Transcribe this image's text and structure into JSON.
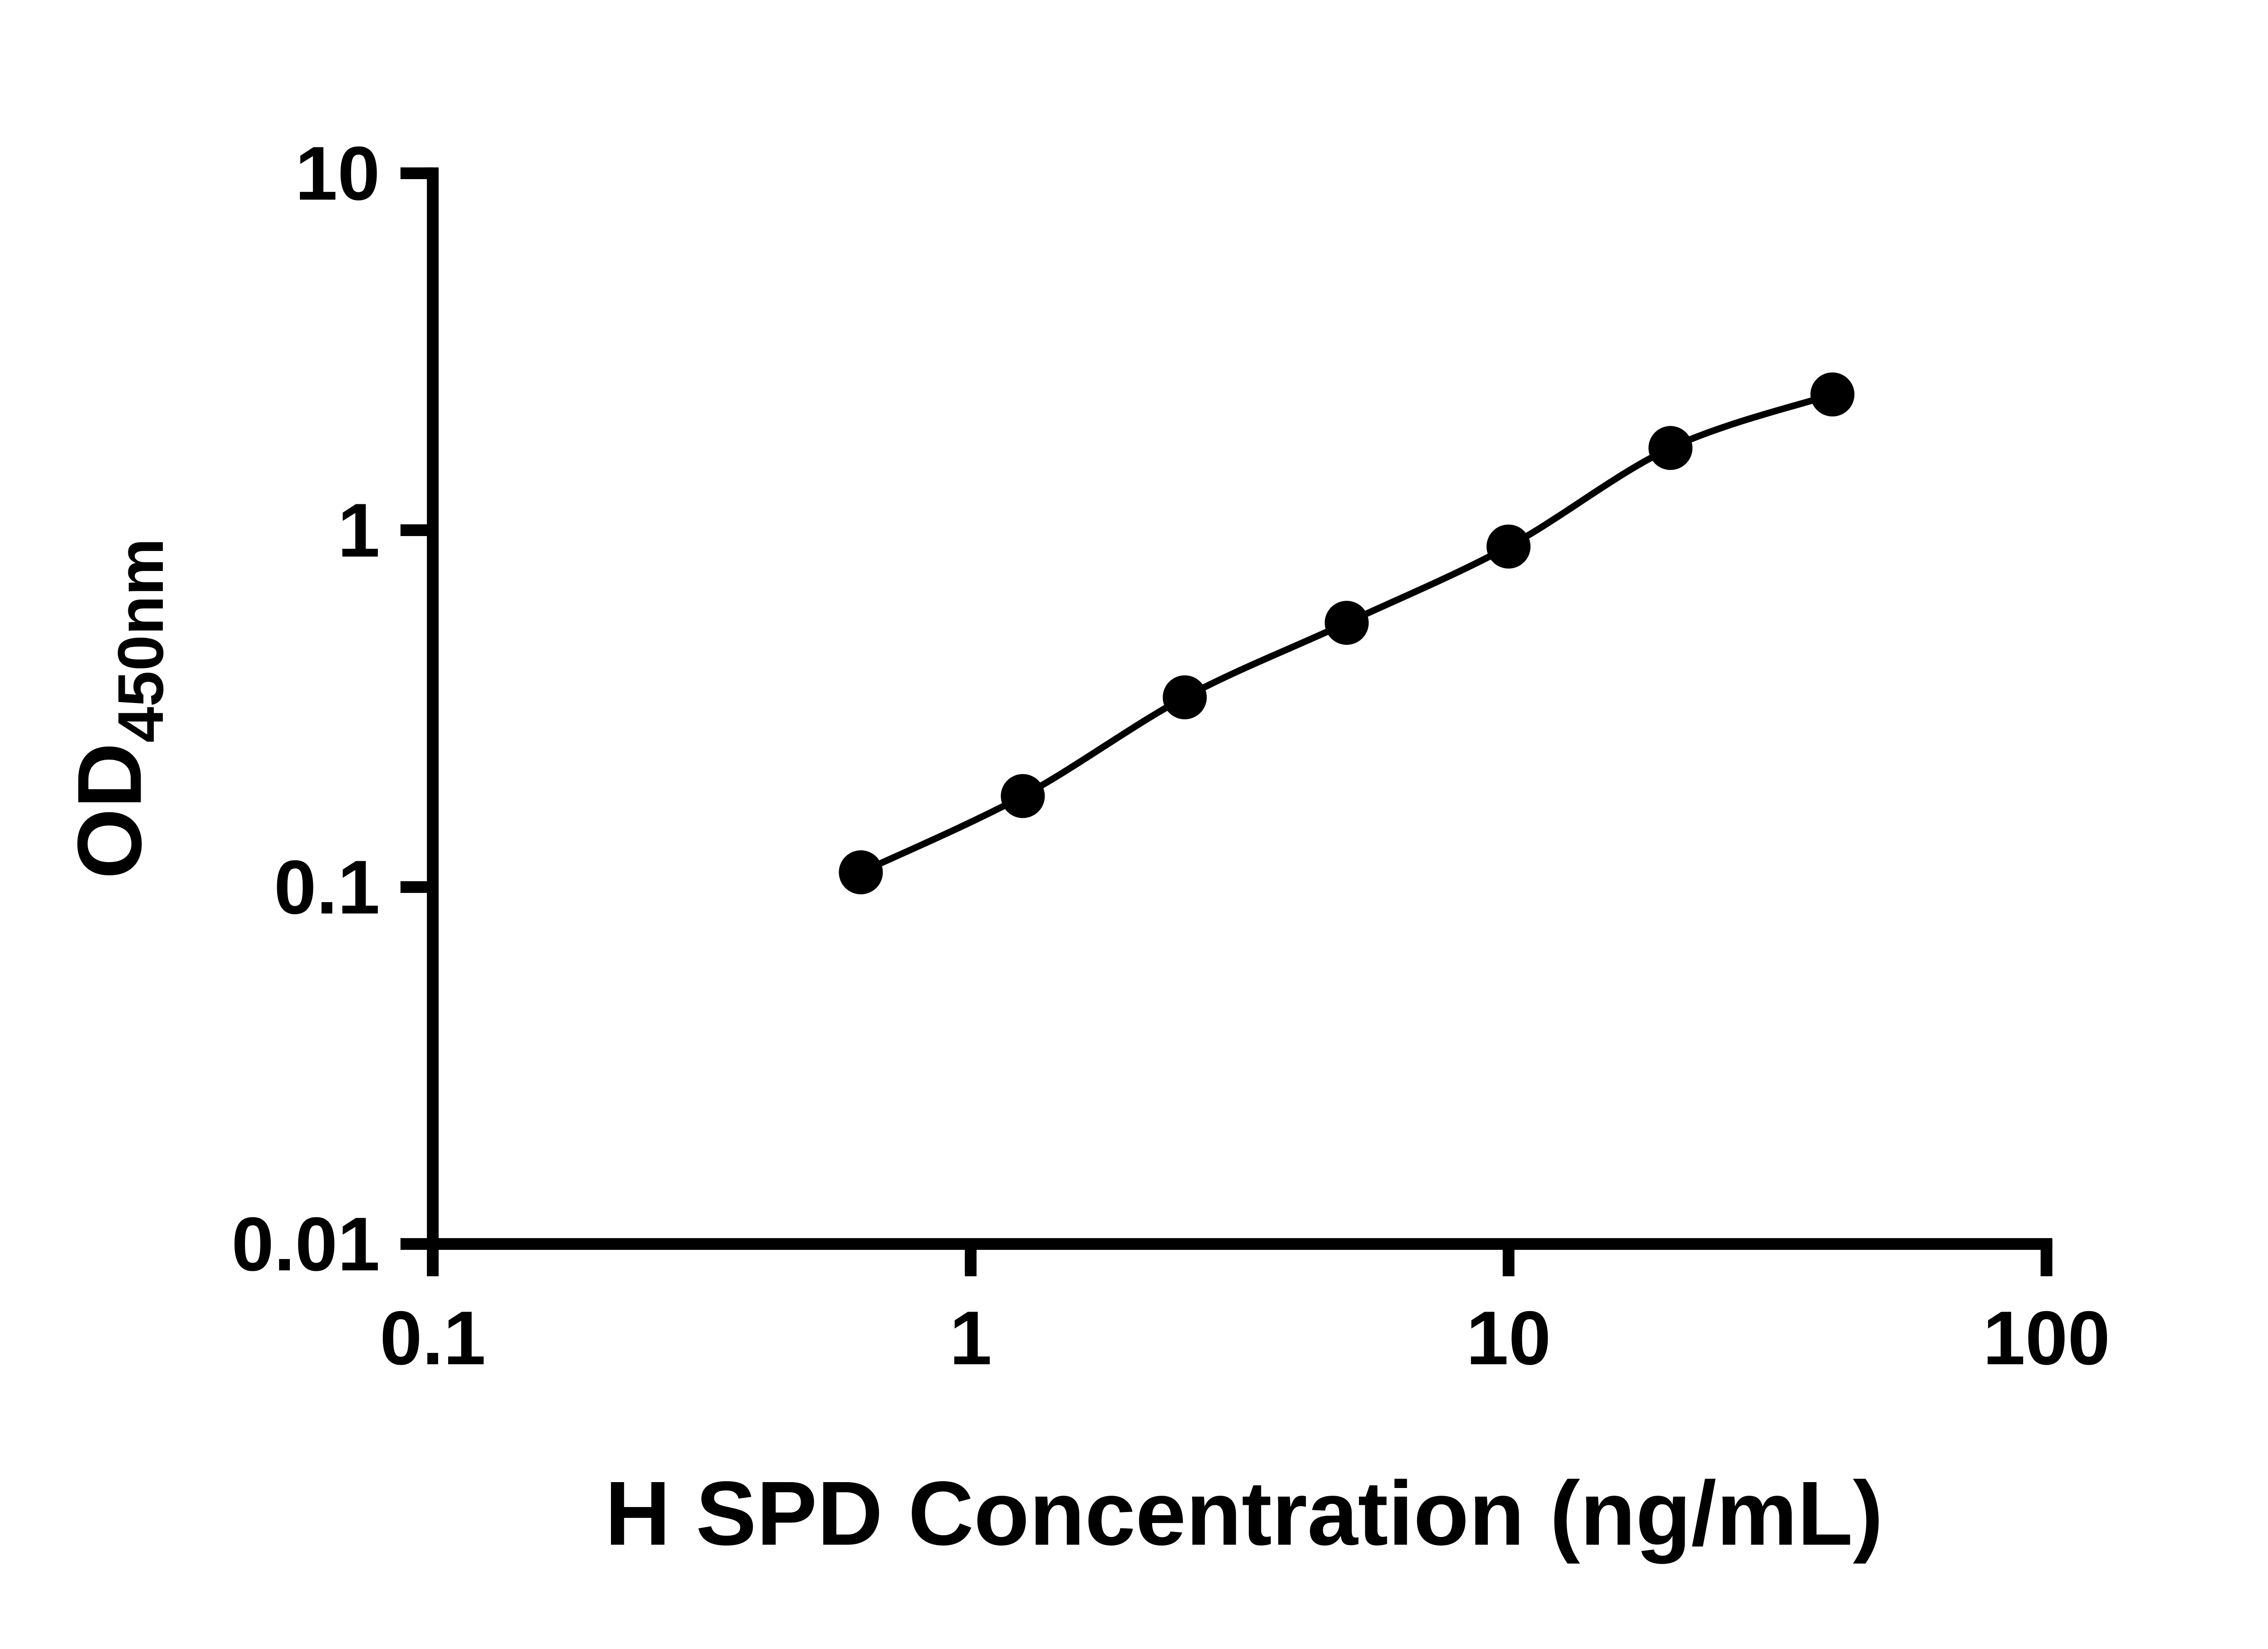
{
  "chart_data": {
    "type": "scatter",
    "title": "",
    "xlabel": "H SPD Concentration (ng/mL)",
    "ylabel_main": "OD",
    "ylabel_sub": "450nm",
    "x_scale": "log",
    "y_scale": "log",
    "xlim": [
      0.1,
      100
    ],
    "ylim": [
      0.01,
      10
    ],
    "grid": false,
    "legend": "none",
    "marker_color": "#000000",
    "line_color": "#000000",
    "x_ticks": [
      {
        "value": 0.1,
        "label": "0.1"
      },
      {
        "value": 1,
        "label": "1"
      },
      {
        "value": 10,
        "label": "10"
      },
      {
        "value": 100,
        "label": "100"
      }
    ],
    "y_ticks": [
      {
        "value": 0.01,
        "label": "0.01"
      },
      {
        "value": 0.1,
        "label": "0.1"
      },
      {
        "value": 1,
        "label": "1"
      },
      {
        "value": 10,
        "label": "10"
      }
    ],
    "series": [
      {
        "marker": "circle",
        "line": "smooth",
        "color": "#000000",
        "points": [
          {
            "x": 0.625,
            "y": 0.11
          },
          {
            "x": 1.25,
            "y": 0.18
          },
          {
            "x": 2.5,
            "y": 0.34
          },
          {
            "x": 5,
            "y": 0.55
          },
          {
            "x": 10,
            "y": 0.9
          },
          {
            "x": 20,
            "y": 1.7
          },
          {
            "x": 40,
            "y": 2.4
          }
        ]
      }
    ]
  }
}
